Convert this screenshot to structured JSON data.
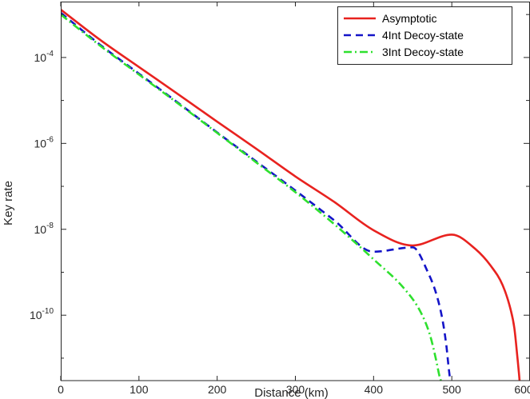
{
  "chart_data": {
    "type": "line",
    "xlabel": "Distance (km)",
    "ylabel": "Key rate",
    "xlim": [
      0,
      600
    ],
    "ylim": [
      3e-12,
      0.002
    ],
    "yscale": "log",
    "x_ticks": [
      0,
      100,
      200,
      300,
      400,
      500,
      600
    ],
    "x_tick_labels": [
      "0",
      "100",
      "200",
      "300",
      "400",
      "500",
      "600"
    ],
    "y_ticks": [
      1e-10,
      1e-08,
      1e-06,
      0.0001
    ],
    "y_tick_labels": [
      {
        "base": "10",
        "exp": "-10"
      },
      {
        "base": "10",
        "exp": "-8"
      },
      {
        "base": "10",
        "exp": "-6"
      },
      {
        "base": "10",
        "exp": "-4"
      }
    ],
    "grid": false,
    "legend_position": "top-right",
    "series": [
      {
        "name": "Asymptotic",
        "color": "#e8221f",
        "dash": "solid",
        "x": [
          0,
          50,
          100,
          150,
          200,
          250,
          300,
          350,
          400,
          450,
          500,
          530,
          550,
          565,
          575,
          580,
          584,
          586,
          587
        ],
        "y": [
          0.0013,
          0.00026,
          6e-05,
          1.4e-05,
          3.2e-06,
          7.5e-07,
          1.7e-07,
          4.3e-08,
          9.5e-09,
          4.2e-09,
          7.5e-09,
          3.5e-09,
          1.4e-09,
          5e-10,
          1.4e-10,
          5e-11,
          1e-11,
          4.2e-12,
          2.5e-12
        ]
      },
      {
        "name": "4Int Decoy-state",
        "color": "#1414c8",
        "dash": "dash",
        "x": [
          0,
          50,
          100,
          150,
          200,
          250,
          300,
          350,
          400,
          450,
          470,
          480,
          488,
          493,
          496,
          498
        ],
        "y": [
          0.0011,
          0.0002,
          4.2e-05,
          8.8e-06,
          1.8e-06,
          3.8e-07,
          8e-08,
          1.6e-08,
          3e-09,
          3.8e-09,
          9.5e-10,
          3.2e-10,
          8e-11,
          2e-11,
          6e-12,
          3e-12
        ]
      },
      {
        "name": "3Int Decoy-state",
        "color": "#2ee02e",
        "dash": "dashdot",
        "x": [
          0,
          50,
          100,
          150,
          200,
          250,
          300,
          350,
          400,
          440,
          460,
          472,
          480,
          484,
          486
        ],
        "y": [
          0.001,
          0.00019,
          4e-05,
          8.5e-06,
          1.75e-06,
          3.6e-07,
          7.3e-08,
          1.3e-08,
          2e-09,
          4e-10,
          1.2e-10,
          3.5e-11,
          9e-12,
          4e-12,
          3e-12
        ]
      }
    ]
  }
}
